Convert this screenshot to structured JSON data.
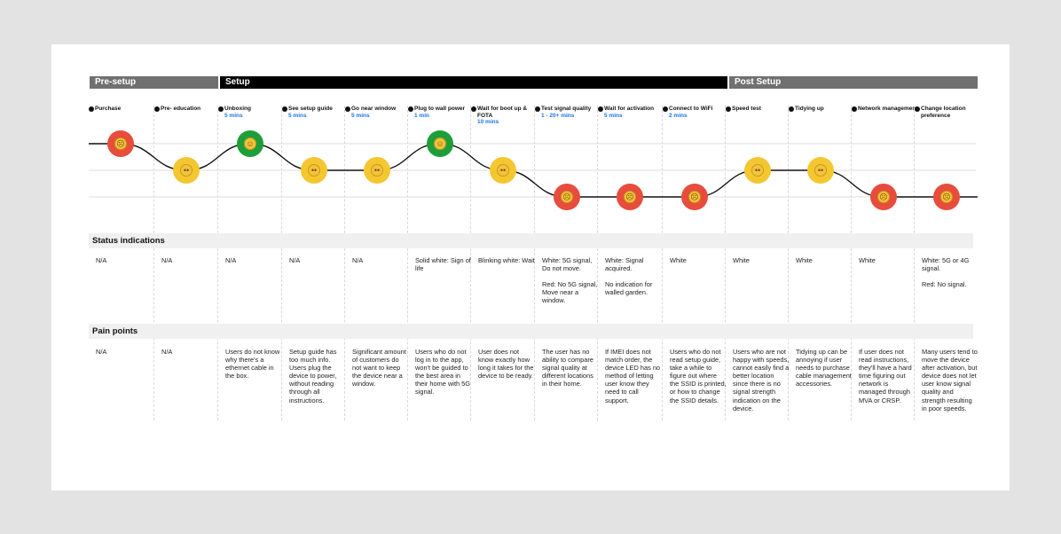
{
  "colors": {
    "sad": "#e74c3c",
    "neutral": "#f4c730",
    "happy": "#1e9e3a",
    "phase_dark": "#707070",
    "phase_black": "#000000",
    "duration_blue": "#1a73e8"
  },
  "phases": [
    {
      "label": "Pre-setup",
      "style": "dark"
    },
    {
      "label": "Setup",
      "style": "black"
    },
    {
      "label": "Post Setup",
      "style": "dark"
    }
  ],
  "stages": [
    {
      "title": "Purchase",
      "duration": "",
      "mood": "sad",
      "status": "N/A",
      "pain": "N/A"
    },
    {
      "title": "Pre- education",
      "duration": "",
      "mood": "neutral",
      "status": "N/A",
      "pain": "N/A"
    },
    {
      "title": "Unboxing",
      "duration": "5 mins",
      "mood": "happy",
      "status": "N/A",
      "pain": "Users do not know why there's a ethernet cable in the box."
    },
    {
      "title": "See setup guide",
      "duration": "5 mins",
      "mood": "neutral",
      "status": "N/A",
      "pain": "Setup guide has too much info. Users plug the device to power, without reading through all instructions."
    },
    {
      "title": "Go near window",
      "duration": "5 mins",
      "mood": "neutral",
      "status": "N/A",
      "pain": "Significant amount of customers do not want to keep the device near a window."
    },
    {
      "title": "Plug to wall power",
      "duration": "1 min",
      "mood": "happy",
      "status": "Solid white: Sign of life",
      "pain": "Users who do not log in to the app, won't be guided to the best area in their home with 5G signal."
    },
    {
      "title": "Wait for boot up & FOTA",
      "duration": "10 mins",
      "mood": "neutral",
      "status": "Blinking white: Wait",
      "pain": "User does not know exactly how long it takes for the device to be ready."
    },
    {
      "title": "Test signal quality",
      "duration": "1 - 20+ mins",
      "mood": "sad",
      "status": "White: 5G signal, Do not move.\n\nRed: No 5G signal, Move near a window.",
      "pain": "The user has no ability to compare signal quality at different locations in their home."
    },
    {
      "title": "Wait for activation",
      "duration": "5 mins",
      "mood": "sad",
      "status": "White: Signal acquired.\n\nNo indication for walled garden.",
      "pain": "If IMEI does not match order, the device LED has no method of letting user know they need to call support."
    },
    {
      "title": "Connect to WiFi",
      "duration": "2 mins",
      "mood": "sad",
      "status": "White",
      "pain": "Users who do not read setup guide, take a while to figure out where the SSID is printed, or how to change the SSID details."
    },
    {
      "title": "Speed test",
      "duration": "",
      "mood": "neutral",
      "status": "White",
      "pain": "Users who are not happy with speeds, cannot easily find a better location since there is no signal strength indication on the device."
    },
    {
      "title": "Tidying up",
      "duration": "",
      "mood": "neutral",
      "status": "White",
      "pain": "Tidying up can be annoying if user needs to purchase cable management accessories."
    },
    {
      "title": "Network management",
      "duration": "",
      "mood": "sad",
      "status": "White",
      "pain": "If user does not read instructions, they'll have a hard time figuring out network is managed through MVA or CRSP."
    },
    {
      "title": "Change location preference",
      "duration": "",
      "mood": "sad",
      "status": "White: 5G or 4G signal.\n\nRed: No signal.",
      "pain": "Many users tend to move the device after activation, but device does not let user know signal quality and strength resulting in poor speeds."
    }
  ],
  "sections": {
    "status": "Status indications",
    "pain": "Pain points"
  }
}
